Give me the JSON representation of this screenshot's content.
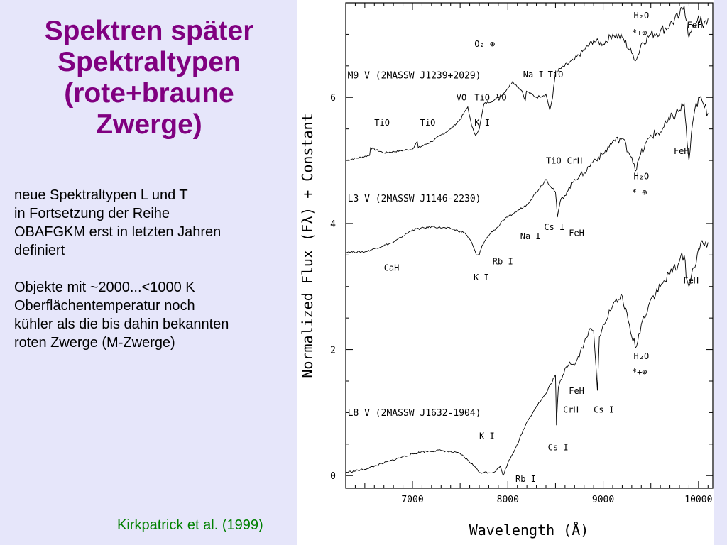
{
  "slide": {
    "title_lines": [
      "Spektren später",
      "Spektraltypen",
      "(rote+braune",
      "Zwerge)"
    ],
    "paragraph1_lines": [
      "neue Spektraltypen L und T",
      "in Fortsetzung der Reihe",
      "OBAFGKM erst in letzten Jahren",
      "definiert"
    ],
    "paragraph2_lines": [
      "Objekte mit ~2000...<1000 K",
      "Oberflächentemperatur noch",
      "kühler als die bis dahin bekannten",
      "roten Zwerge (M-Zwerge)"
    ],
    "citation": "Kirkpatrick et al. (1999)"
  },
  "colors": {
    "background": "#e6e6fa",
    "title": "#800080",
    "citation": "#008000"
  },
  "chart_data": {
    "type": "line",
    "xlabel": "Wavelength (Å)",
    "ylabel": "Normalized Flux (Fλ) + Constant",
    "xlim": [
      6300,
      10150
    ],
    "ylim": [
      -0.2,
      7.5
    ],
    "x_ticks": [
      "7000",
      "8000",
      "9000",
      "10000"
    ],
    "y_ticks": [
      "0",
      "2",
      "4",
      "6"
    ],
    "series": [
      {
        "name": "M9 V (2MASSW J1239+2029)",
        "x": [
          6300,
          6550,
          6560,
          6700,
          7000,
          7050,
          7060,
          7200,
          7400,
          7500,
          7580,
          7620,
          7660,
          7700,
          7750,
          7850,
          7950,
          8050,
          8150,
          8183,
          8195,
          8300,
          8400,
          8440,
          8470,
          8500,
          8700,
          8900,
          9000,
          9100,
          9200,
          9300,
          9350,
          9400,
          9500,
          9600,
          9700,
          9800,
          9850,
          9880,
          9900,
          9950,
          10000,
          10050,
          10100
        ],
        "y": [
          5.0,
          5.08,
          5.2,
          5.12,
          5.18,
          5.3,
          5.2,
          5.3,
          5.5,
          5.65,
          5.85,
          5.55,
          5.4,
          5.5,
          5.9,
          5.95,
          6.05,
          6.25,
          6.1,
          5.95,
          6.1,
          6.0,
          6.05,
          5.8,
          6.0,
          6.4,
          6.6,
          6.9,
          6.85,
          7.0,
          6.95,
          6.7,
          6.6,
          6.85,
          7.0,
          7.05,
          7.15,
          7.3,
          7.45,
          7.2,
          6.95,
          7.1,
          7.3,
          7.1,
          7.25
        ]
      },
      {
        "name": "L3 V (2MASSW J1146-2230)",
        "x": [
          6300,
          6500,
          6600,
          6800,
          7000,
          7200,
          7400,
          7550,
          7620,
          7670,
          7700,
          7730,
          7770,
          7820,
          7900,
          7950,
          8000,
          8100,
          8200,
          8300,
          8400,
          8500,
          8520,
          8550,
          8620,
          8700,
          8800,
          8900,
          9000,
          9100,
          9200,
          9300,
          9350,
          9380,
          9500,
          9600,
          9700,
          9800,
          9850,
          9880,
          9900,
          9950,
          10000,
          10100
        ],
        "y": [
          3.55,
          3.55,
          3.6,
          3.7,
          3.9,
          3.95,
          3.92,
          3.85,
          3.7,
          3.5,
          3.5,
          3.65,
          3.75,
          3.85,
          3.95,
          4.05,
          4.1,
          4.2,
          4.3,
          4.5,
          4.7,
          4.5,
          4.1,
          4.35,
          4.5,
          4.7,
          4.8,
          5.0,
          5.1,
          5.3,
          5.35,
          5.05,
          4.85,
          5.05,
          5.4,
          5.45,
          5.65,
          5.8,
          5.9,
          5.3,
          5.0,
          5.7,
          6.0,
          5.75
        ]
      },
      {
        "name": "L8 V (2MASSW J1632-1904)",
        "x": [
          6300,
          6500,
          6700,
          6900,
          7100,
          7300,
          7500,
          7650,
          7700,
          7750,
          7850,
          7920,
          7950,
          8000,
          8100,
          8200,
          8300,
          8400,
          8500,
          8510,
          8530,
          8600,
          8650,
          8700,
          8800,
          8850,
          8900,
          8940,
          8960,
          9000,
          9100,
          9200,
          9300,
          9350,
          9400,
          9500,
          9600,
          9700,
          9800,
          9850,
          9880,
          9900,
          9950,
          10000,
          10100
        ],
        "y": [
          0.05,
          0.1,
          0.2,
          0.3,
          0.38,
          0.4,
          0.35,
          0.15,
          0.05,
          0.05,
          0.05,
          0.15,
          0.0,
          0.2,
          0.5,
          0.85,
          1.1,
          1.3,
          1.6,
          0.8,
          1.4,
          1.7,
          1.8,
          1.75,
          2.1,
          2.3,
          2.3,
          1.35,
          2.2,
          2.4,
          2.7,
          2.85,
          2.2,
          2.05,
          2.4,
          2.8,
          3.0,
          3.2,
          3.4,
          3.5,
          3.1,
          3.0,
          3.3,
          3.6,
          3.7
        ]
      }
    ],
    "annotations": [
      {
        "text": "TiO",
        "x": 6600,
        "y": 5.55
      },
      {
        "text": "TiO",
        "x": 7080,
        "y": 5.55
      },
      {
        "text": "VO",
        "x": 7460,
        "y": 5.95
      },
      {
        "text": "TiO",
        "x": 7650,
        "y": 5.95
      },
      {
        "text": "VO",
        "x": 7880,
        "y": 5.95
      },
      {
        "text": "K I",
        "x": 7650,
        "y": 5.55
      },
      {
        "text": "O₂ ⊕",
        "x": 7650,
        "y": 6.8
      },
      {
        "text": "Na I",
        "x": 8160,
        "y": 6.32
      },
      {
        "text": "TiO",
        "x": 8420,
        "y": 6.32
      },
      {
        "text": "H₂O",
        "x": 9320,
        "y": 7.25
      },
      {
        "text": "*+⊕",
        "x": 9300,
        "y": 6.98
      },
      {
        "text": "FeH",
        "x": 9880,
        "y": 7.1
      },
      {
        "text": "FeH",
        "x": 9740,
        "y": 5.1
      },
      {
        "text": "TiO",
        "x": 8400,
        "y": 4.95
      },
      {
        "text": "CrH",
        "x": 8620,
        "y": 4.95
      },
      {
        "text": "H₂O",
        "x": 9320,
        "y": 4.7
      },
      {
        "text": "* ⊕",
        "x": 9300,
        "y": 4.45
      },
      {
        "text": "Cs I",
        "x": 8380,
        "y": 3.9
      },
      {
        "text": "Na I",
        "x": 8130,
        "y": 3.75
      },
      {
        "text": "FeH",
        "x": 8640,
        "y": 3.8
      },
      {
        "text": "CaH",
        "x": 6700,
        "y": 3.25
      },
      {
        "text": "K I",
        "x": 7640,
        "y": 3.1
      },
      {
        "text": "Rb I",
        "x": 7840,
        "y": 3.35
      },
      {
        "text": "FeH",
        "x": 9840,
        "y": 3.05
      },
      {
        "text": "H₂O",
        "x": 9320,
        "y": 1.85
      },
      {
        "text": "*+⊕",
        "x": 9300,
        "y": 1.6
      },
      {
        "text": "FeH",
        "x": 8640,
        "y": 1.3
      },
      {
        "text": "CrH",
        "x": 8580,
        "y": 1.0
      },
      {
        "text": "Cs I",
        "x": 8900,
        "y": 1.0
      },
      {
        "text": "K I",
        "x": 7700,
        "y": 0.58
      },
      {
        "text": "Cs I",
        "x": 8420,
        "y": 0.4
      },
      {
        "text": "Rb I",
        "x": 8080,
        "y": -0.1
      }
    ]
  }
}
